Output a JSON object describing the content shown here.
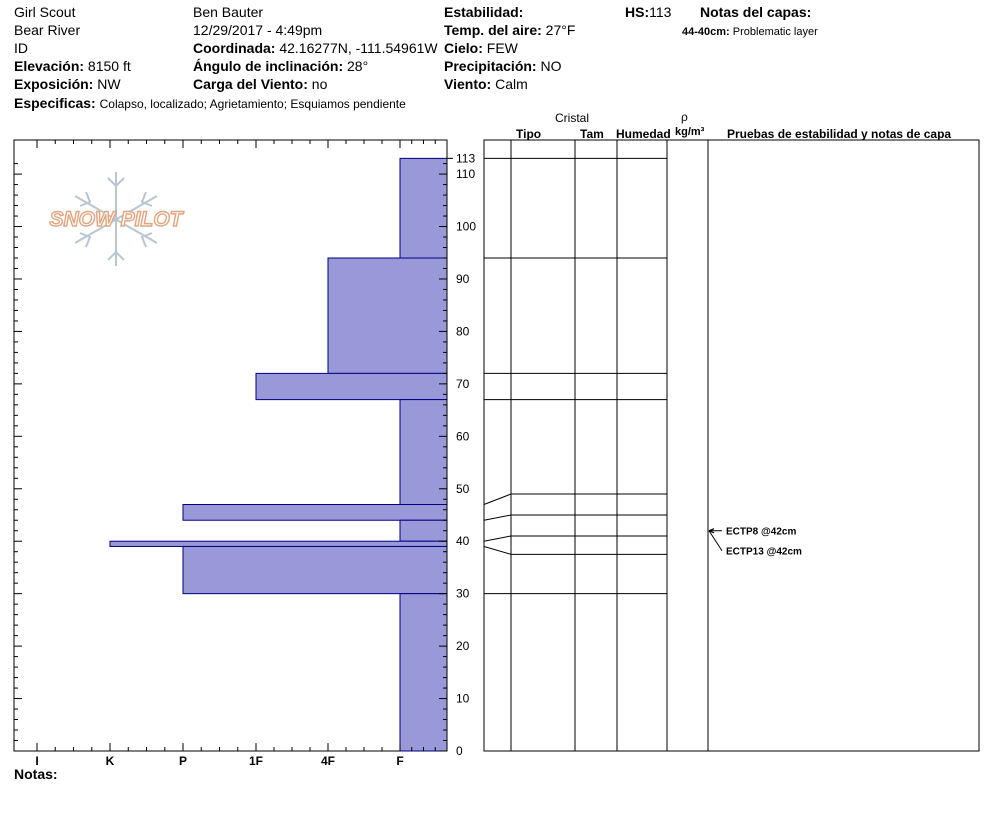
{
  "header": {
    "location": "Girl Scout",
    "range": "Bear River",
    "id_label": "ID",
    "observer": "Ben Bauter",
    "datetime": "12/29/2017 - 4:49pm",
    "elevation_label": "Elevación:",
    "elevation": "8150 ft",
    "exposure_label": "Exposición:",
    "exposure": "NW",
    "coord_label": "Coordinada:",
    "coords": "42.16277N, -111.54961W",
    "slope_label": "Ángulo de inclinación:",
    "slope": "28°",
    "wind_load_label": "Carga del Viento:",
    "wind_load": "no",
    "stability_label": "Estabilidad:",
    "air_temp_label": "Temp. del aire:",
    "air_temp": "27°F",
    "sky_label": "Cielo:",
    "sky": "FEW",
    "precip_label": "Precipitación:",
    "precip": "NO",
    "wind_label": "Viento:",
    "wind": "Calm",
    "hs_label": "HS:",
    "hs": "113",
    "layer_notes_label": "Notas del capas:",
    "layer_note_range": "44-40cm:",
    "layer_note_text": "Problematic layer",
    "specifics_label": "Especificas:",
    "specifics": "Colapso, localizado;  Agrietamiento;  Esquiamos pendiente"
  },
  "logo_text": "SNOW PILOT",
  "columns": {
    "crystal": "Cristal",
    "type": "Tipo",
    "size": "Tam",
    "humidity": "Humedad",
    "rho": "ρ",
    "density_unit": "kg/m³",
    "tests": "Pruebas de estabilidad y notas de capa"
  },
  "notes_label": "Notas:",
  "chart_data": {
    "type": "bar",
    "orientation": "horizontal",
    "description_x": "hand hardness",
    "x_categories": [
      "I",
      "K",
      "P",
      "1F",
      "4F",
      "F"
    ],
    "y_axis": {
      "min": 0,
      "max": 113,
      "ticks": [
        0,
        10,
        20,
        30,
        40,
        50,
        60,
        70,
        80,
        90,
        100,
        110,
        113
      ]
    },
    "layers": [
      {
        "top": 113,
        "bottom": 94,
        "hardness": "F"
      },
      {
        "top": 94,
        "bottom": 72,
        "hardness": "4F"
      },
      {
        "top": 72,
        "bottom": 67,
        "hardness": "1F"
      },
      {
        "top": 67,
        "bottom": 47,
        "hardness": "F"
      },
      {
        "top": 47,
        "bottom": 44,
        "hardness": "P"
      },
      {
        "top": 44,
        "bottom": 40,
        "hardness": "F"
      },
      {
        "top": 40,
        "bottom": 39,
        "hardness": "K"
      },
      {
        "top": 39,
        "bottom": 30,
        "hardness": "P"
      },
      {
        "top": 30,
        "bottom": 0,
        "hardness": "F"
      }
    ],
    "stratigraphy_boundaries_right": [
      113,
      94,
      72,
      67,
      49,
      45,
      41,
      37.5,
      30
    ],
    "stratigraphy_boundaries_left": [
      47,
      44,
      40,
      39
    ],
    "tests": [
      {
        "label": "ECTP8 @42cm",
        "depth": 42
      },
      {
        "label": "ECTP13 @42cm",
        "depth": 42
      }
    ],
    "bar_color": "#9999d9",
    "bar_edge_color": "#000080"
  }
}
